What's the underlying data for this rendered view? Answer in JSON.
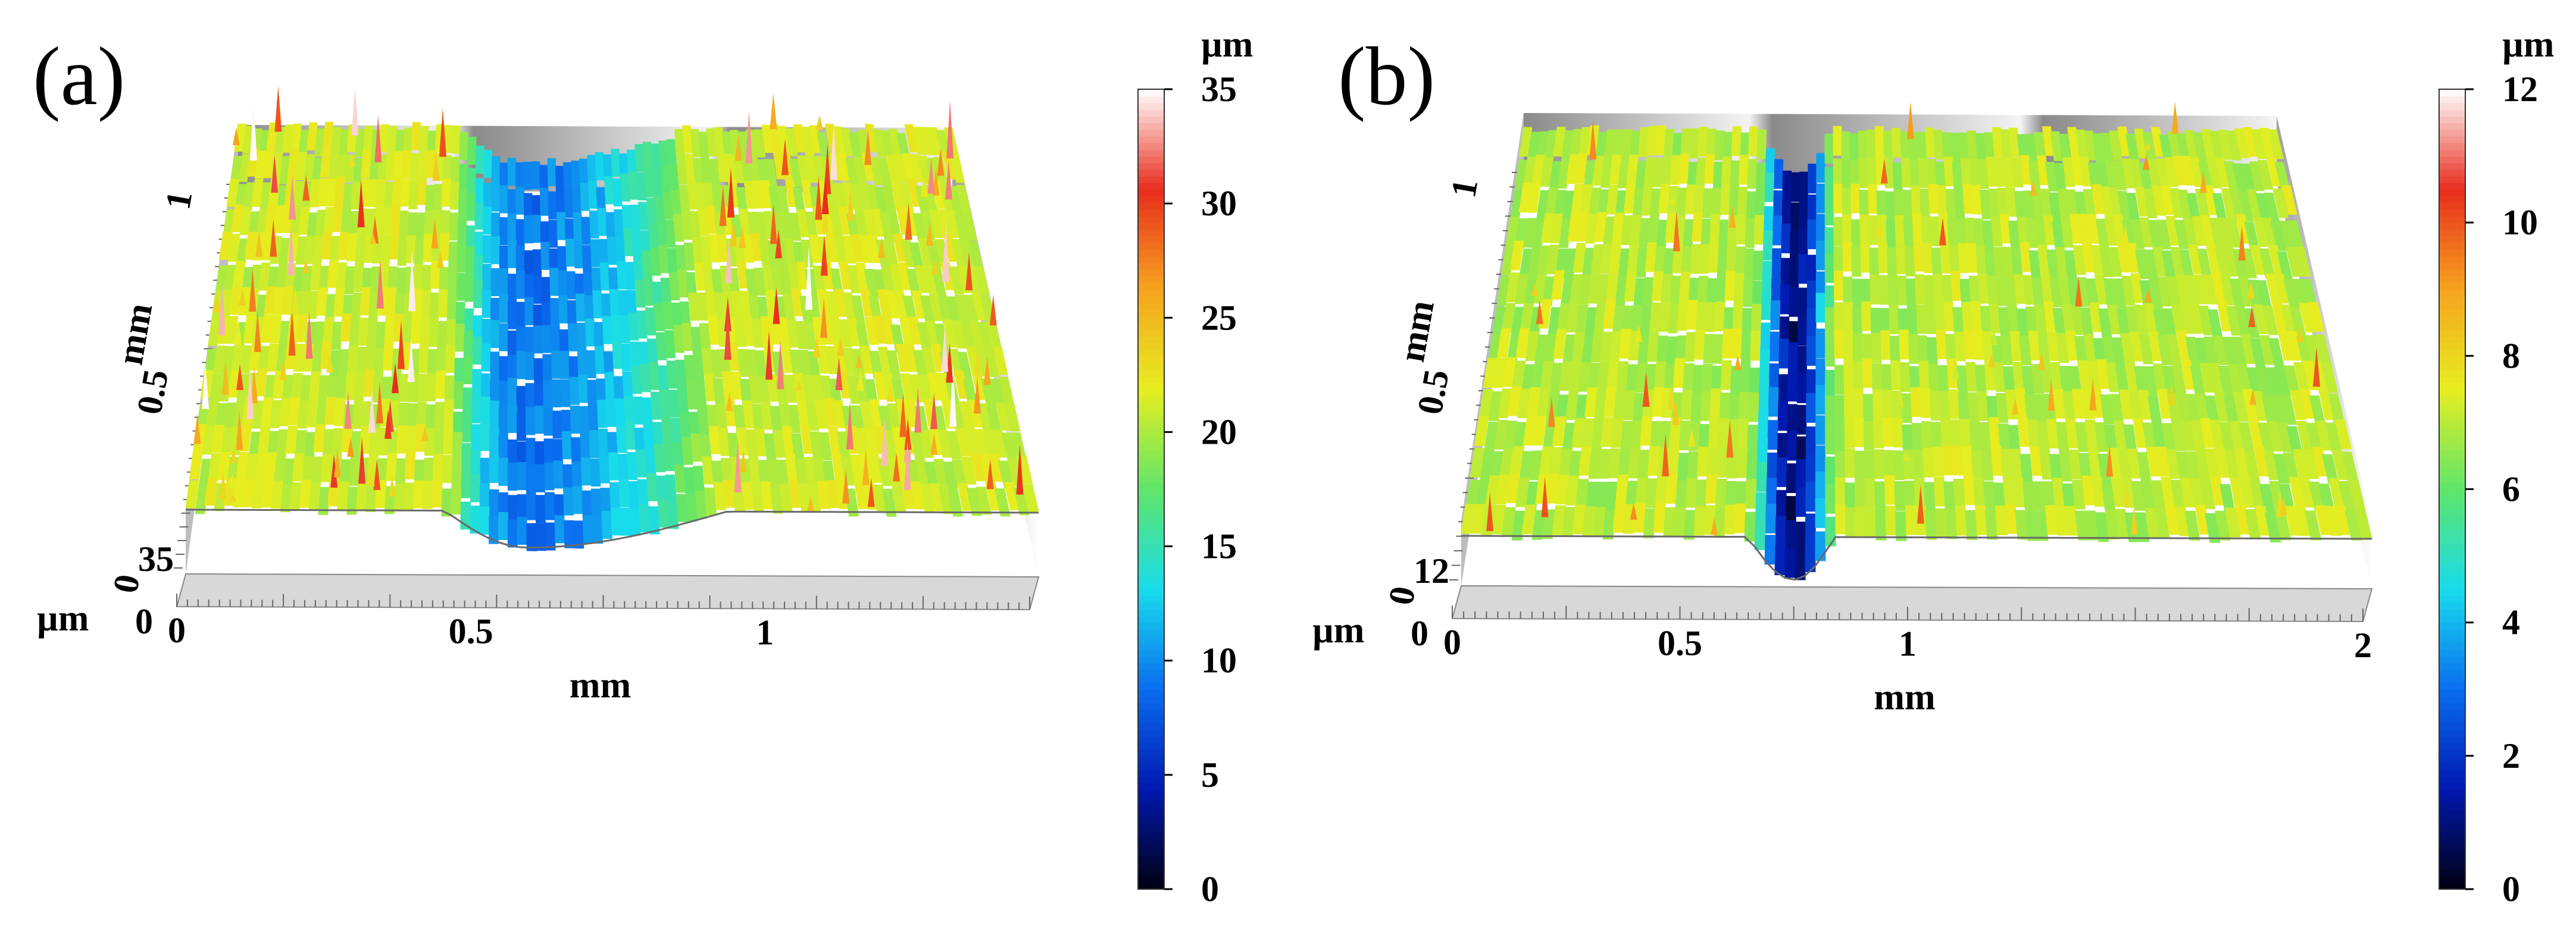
{
  "chart_data": [
    {
      "type": "surface3d",
      "panel_label": "(a)",
      "x_unit": "mm",
      "y_unit": "mm",
      "z_unit": "µm",
      "x_ticks": [
        "0",
        "0.5",
        "1"
      ],
      "y_ticks": [
        "0",
        "0.5",
        "1"
      ],
      "z_ticks": [
        "0",
        "35"
      ],
      "xlim": [
        0,
        1.45
      ],
      "ylim": [
        0,
        1
      ],
      "zlim": [
        0,
        35
      ],
      "surface_level": 21,
      "groove": {
        "x_start": 0.44,
        "x_end": 0.92,
        "center": 0.58,
        "min_depth": 9
      },
      "colorbar": {
        "unit": "µm",
        "ticks": [
          "0",
          "5",
          "10",
          "15",
          "20",
          "25",
          "30",
          "35"
        ],
        "range": [
          0,
          35
        ]
      }
    },
    {
      "type": "surface3d",
      "panel_label": "(b)",
      "x_unit": "mm",
      "y_unit": "mm",
      "z_unit": "µm",
      "x_ticks": [
        "0",
        "0.5",
        "1",
        "2"
      ],
      "y_ticks": [
        "0",
        "0.5",
        "1"
      ],
      "z_ticks": [
        "0",
        "12"
      ],
      "xlim": [
        0,
        2
      ],
      "ylim": [
        0,
        1
      ],
      "zlim": [
        0,
        12
      ],
      "surface_level": 7,
      "groove": {
        "x_start": 0.63,
        "x_end": 0.82,
        "center": 0.73,
        "min_depth": 1
      },
      "colorbar": {
        "unit": "µm",
        "ticks": [
          "0",
          "2",
          "4",
          "6",
          "8",
          "10",
          "12"
        ],
        "range": [
          0,
          12
        ]
      }
    }
  ],
  "colors": {
    "colormap": [
      "#000010",
      "#0018b0",
      "#0a6df0",
      "#18dcec",
      "#5fe56a",
      "#e6ee20",
      "#f6a41e",
      "#e82c1c",
      "#ffffff"
    ],
    "floor": "#d8d8d8",
    "back_wall_light": "#f2f2f2",
    "back_wall_dark": "#8c8c8c"
  }
}
